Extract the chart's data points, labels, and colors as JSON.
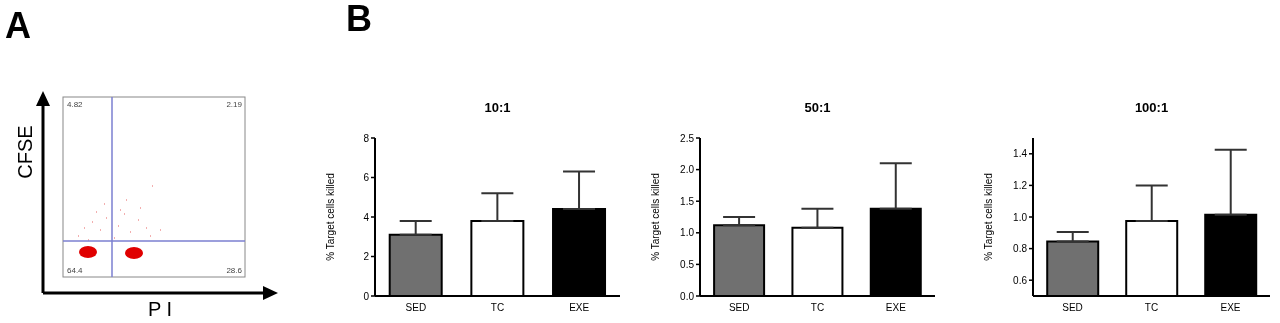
{
  "chart_data": [
    {
      "type": "other",
      "title": "A",
      "xlabel": "P I",
      "ylabel": "CFSE",
      "annotations": [
        "4.82",
        "2.19",
        "64.4",
        "28.6"
      ]
    },
    {
      "type": "bar",
      "title": "10:1",
      "ylabel": "% Target cells killed",
      "categories": [
        "SED",
        "TC",
        "EXE"
      ],
      "values": [
        3.1,
        3.8,
        4.4
      ],
      "colors": [
        "#707070",
        "#ffffff",
        "#000000"
      ],
      "errors": [
        [
          3.1,
          3.8
        ],
        [
          3.8,
          5.2
        ],
        [
          4.4,
          6.3
        ]
      ],
      "ylim": [
        0,
        8
      ],
      "yticks": [
        0,
        2,
        4,
        6,
        8
      ],
      "annotations": [
        "B"
      ]
    },
    {
      "type": "bar",
      "title": "50:1",
      "ylabel": "% Target cells killed",
      "categories": [
        "SED",
        "TC",
        "EXE"
      ],
      "values": [
        1.12,
        1.08,
        1.38
      ],
      "colors": [
        "#707070",
        "#ffffff",
        "#000000"
      ],
      "errors": [
        [
          1.12,
          1.25
        ],
        [
          1.08,
          1.38
        ],
        [
          1.38,
          2.1
        ]
      ],
      "ylim": [
        0,
        2.5
      ],
      "yticks": [
        {
          "value": 0,
          "label": "0.0"
        },
        {
          "value": 0.5,
          "label": "0.5"
        },
        {
          "value": 1,
          "label": "1.0"
        },
        {
          "value": 1.5,
          "label": "1.5"
        },
        {
          "value": 2,
          "label": "2.0"
        },
        {
          "value": 2.5,
          "label": "2.5"
        }
      ]
    },
    {
      "type": "bar",
      "title": "100:1",
      "ylabel": "% Target cells killed",
      "categories": [
        "SED",
        "TC",
        "EXE"
      ],
      "values": [
        0.845,
        0.975,
        1.015
      ],
      "colors": [
        "#707070",
        "#ffffff",
        "#000000"
      ],
      "errors": [
        [
          0.845,
          0.905
        ],
        [
          0.975,
          1.2
        ],
        [
          1.015,
          1.425
        ]
      ],
      "ylim": [
        0.5,
        1.5
      ],
      "yticks": [
        0.6,
        0.8,
        {
          "value": 1,
          "label": "1.0"
        },
        1.2,
        1.4
      ]
    }
  ]
}
